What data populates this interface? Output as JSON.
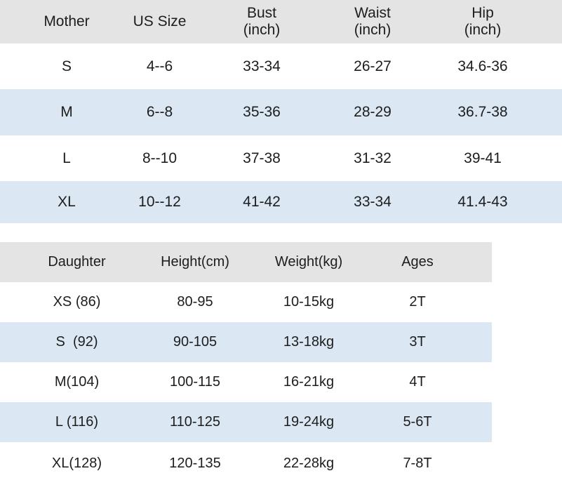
{
  "colors": {
    "header_bg": "#e4e4e4",
    "stripe_bg": "#dbe8f4",
    "row_bg": "#ffffff",
    "text": "#1d1d1d"
  },
  "chart_data": [
    {
      "type": "table",
      "columns": [
        "Mother",
        "US Size",
        "Bust\n(inch)",
        "Waist\n(inch)",
        "Hip\n(inch)"
      ],
      "rows": [
        [
          "S",
          "4--6",
          "33-34",
          "26-27",
          "34.6-36"
        ],
        [
          "M",
          "6--8",
          "35-36",
          "28-29",
          "36.7-38"
        ],
        [
          "L",
          "8--10",
          "37-38",
          "31-32",
          "39-41"
        ],
        [
          "XL",
          "10--12",
          "41-42",
          "33-34",
          "41.4-43"
        ]
      ],
      "layout": {
        "header_background": "#e4e4e4",
        "zebra_stripe": "#dbe8f4",
        "striped_rows": [
          "M",
          "XL"
        ]
      }
    },
    {
      "type": "table",
      "columns": [
        "Daughter",
        "Height(cm)",
        "Weight(kg)",
        "Ages"
      ],
      "rows": [
        [
          "XS (86)",
          "80-95",
          "10-15kg",
          "2T"
        ],
        [
          "S  (92)",
          "90-105",
          "13-18kg",
          "3T"
        ],
        [
          "M(104)",
          "100-115",
          "16-21kg",
          "4T"
        ],
        [
          "L (116)",
          "110-125",
          "19-24kg",
          "5-6T"
        ],
        [
          "XL(128)",
          "120-135",
          "22-28kg",
          "7-8T"
        ]
      ],
      "layout": {
        "header_background": "#e4e4e4",
        "zebra_stripe": "#dbe8f4",
        "striped_rows": [
          "S  (92)",
          "L (116)"
        ]
      }
    }
  ]
}
